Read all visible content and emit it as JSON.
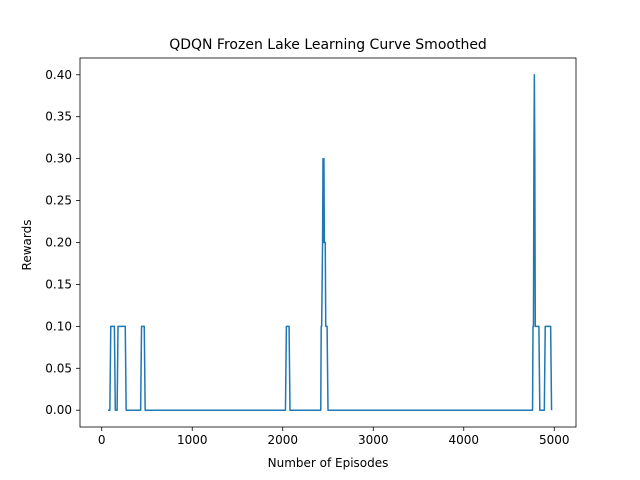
{
  "chart_data": {
    "type": "line",
    "title": "QDQN Frozen Lake Learning Curve Smoothed",
    "xlabel": "Number of Episodes",
    "ylabel": "Rewards",
    "xlim": [
      -240,
      5240
    ],
    "ylim": [
      -0.02,
      0.42
    ],
    "xticks": [
      0,
      1000,
      2000,
      3000,
      4000,
      5000
    ],
    "yticks": [
      0.0,
      0.05,
      0.1,
      0.15,
      0.2,
      0.25,
      0.3,
      0.35,
      0.4
    ],
    "xtick_labels": [
      "0",
      "1000",
      "2000",
      "3000",
      "4000",
      "5000"
    ],
    "ytick_labels": [
      "0.00",
      "0.05",
      "0.10",
      "0.15",
      "0.20",
      "0.25",
      "0.30",
      "0.35",
      "0.40"
    ],
    "grid": false,
    "line_color": "#1f77b4",
    "series": [
      {
        "x": [
          70,
          90,
          100,
          140,
          150,
          170,
          180,
          200,
          210,
          260,
          270,
          430,
          440,
          470,
          480,
          2030,
          2040,
          2070,
          2080,
          2420,
          2425,
          2430,
          2440,
          2445,
          2450,
          2455,
          2460,
          2470,
          2475,
          2490,
          2500,
          4760,
          4765,
          4770,
          4775,
          4780,
          4785,
          4790,
          4795,
          4800,
          4830,
          4840,
          4890,
          4900,
          4960,
          4970
        ],
        "y": [
          0.0,
          0.0,
          0.1,
          0.1,
          0.0,
          0.0,
          0.1,
          0.1,
          0.1,
          0.1,
          0.0,
          0.0,
          0.1,
          0.1,
          0.0,
          0.0,
          0.1,
          0.1,
          0.0,
          0.0,
          0.1,
          0.1,
          0.2,
          0.3,
          0.2,
          0.3,
          0.2,
          0.2,
          0.1,
          0.1,
          0.0,
          0.0,
          0.1,
          0.1,
          0.3,
          0.4,
          0.3,
          0.1,
          0.1,
          0.1,
          0.1,
          0.0,
          0.0,
          0.1,
          0.1,
          0.0
        ]
      }
    ]
  }
}
